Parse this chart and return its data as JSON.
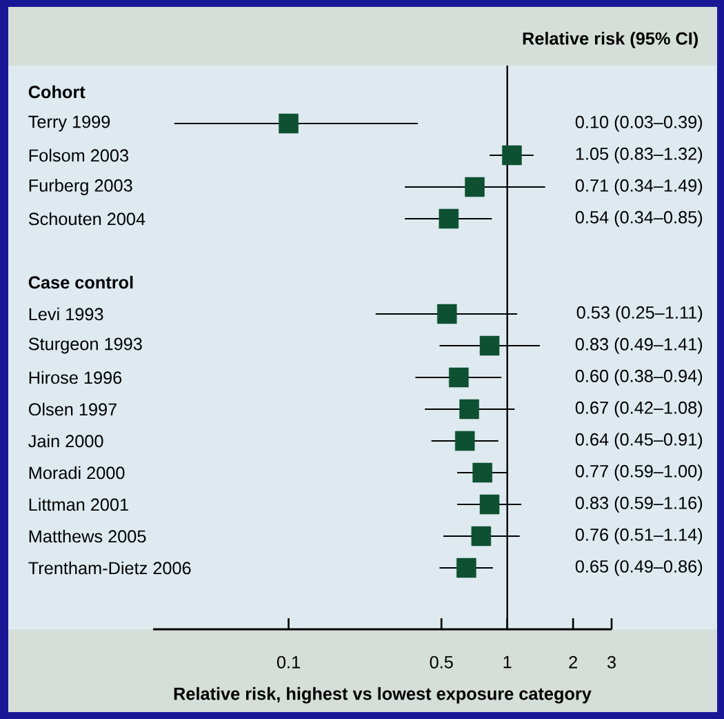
{
  "chart_data": {
    "type": "scatter",
    "orientation": "horizontal",
    "title": "Relative risk (95% CI)",
    "xlabel": "Relative risk, highest vs lowest exposure category",
    "categories": [
      "Cohort",
      "Terry 1999",
      "Folsom 2003",
      "Furberg 2003",
      "Schouten 2004",
      null,
      "Case control",
      "Levi 1993",
      "Sturgeon 1993",
      "Hirose 1996",
      "Olsen 1997",
      "Jain 2000",
      "Moradi 2000",
      "Littman 2001",
      "Matthews 2005",
      "Trentham-Dietz 2006"
    ],
    "values": [
      null,
      0.1,
      1.05,
      0.71,
      0.54,
      null,
      null,
      0.53,
      0.83,
      0.6,
      0.67,
      0.64,
      0.77,
      0.83,
      0.76,
      0.65
    ],
    "errors": [
      null,
      [
        0.03,
        0.39
      ],
      [
        0.83,
        1.32
      ],
      [
        0.34,
        1.49
      ],
      [
        0.34,
        0.85
      ],
      null,
      null,
      [
        0.25,
        1.11
      ],
      [
        0.49,
        1.41
      ],
      [
        0.38,
        0.94
      ],
      [
        0.42,
        1.08
      ],
      [
        0.45,
        0.91
      ],
      [
        0.59,
        1.0
      ],
      [
        0.59,
        1.16
      ],
      [
        0.51,
        1.14
      ],
      [
        0.49,
        0.86
      ]
    ],
    "value_labels": [
      null,
      "0.10 (0.03–0.39)",
      "1.05 (0.83–1.32)",
      "0.71 (0.34–1.49)",
      "0.54 (0.34–0.85)",
      null,
      null,
      "0.53 (0.25–1.11)",
      "0.83 (0.49–1.41)",
      "0.60 (0.38–0.94)",
      "0.67 (0.42–1.08)",
      "0.64 (0.45–0.91)",
      "0.77 (0.59–1.00)",
      "0.83 (0.59–1.16)",
      "0.76 (0.51–1.14)",
      "0.65 (0.49–0.86)"
    ],
    "color": "#0d5132",
    "marker": "square",
    "log": "x",
    "xlim": [
      0.024,
      3
    ],
    "xticks": [
      0.1,
      0.5,
      1,
      2,
      3
    ],
    "ref_lines": [
      {
        "axis": "x",
        "value": 1
      }
    ],
    "grid": false
  }
}
